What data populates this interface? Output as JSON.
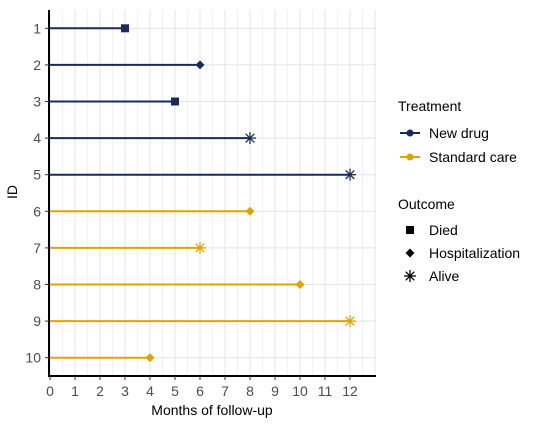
{
  "chart_data": {
    "type": "swimmer",
    "xlabel": "Months of follow-up",
    "ylabel": "ID",
    "xlim": [
      0,
      13
    ],
    "x_ticks": [
      0,
      1,
      2,
      3,
      4,
      5,
      6,
      7,
      8,
      9,
      10,
      11,
      12
    ],
    "grid": true,
    "legend_position": "right",
    "colors": {
      "New drug": "#1a2a5e",
      "Standard care": "#e0a400"
    },
    "legend": {
      "treatment_title": "Treatment",
      "treatments": [
        {
          "label": "New drug",
          "color": "#1a2a5e"
        },
        {
          "label": "Standard care",
          "color": "#e0a400"
        }
      ],
      "outcome_title": "Outcome",
      "outcomes": [
        {
          "label": "Died",
          "marker": "square"
        },
        {
          "label": "Hospitalization",
          "marker": "diamond"
        },
        {
          "label": "Alive",
          "marker": "asterisk"
        }
      ]
    },
    "rows": [
      {
        "id": "1",
        "months": 3,
        "treatment": "New drug",
        "outcome": "Died"
      },
      {
        "id": "2",
        "months": 6,
        "treatment": "New drug",
        "outcome": "Hospitalization"
      },
      {
        "id": "3",
        "months": 5,
        "treatment": "New drug",
        "outcome": "Died"
      },
      {
        "id": "4",
        "months": 8,
        "treatment": "New drug",
        "outcome": "Alive"
      },
      {
        "id": "5",
        "months": 12,
        "treatment": "New drug",
        "outcome": "Alive"
      },
      {
        "id": "6",
        "months": 8,
        "treatment": "Standard care",
        "outcome": "Hospitalization"
      },
      {
        "id": "7",
        "months": 6,
        "treatment": "Standard care",
        "outcome": "Alive"
      },
      {
        "id": "8",
        "months": 10,
        "treatment": "Standard care",
        "outcome": "Hospitalization"
      },
      {
        "id": "9",
        "months": 12,
        "treatment": "Standard care",
        "outcome": "Alive"
      },
      {
        "id": "10",
        "months": 4,
        "treatment": "Standard care",
        "outcome": "Hospitalization"
      }
    ]
  }
}
